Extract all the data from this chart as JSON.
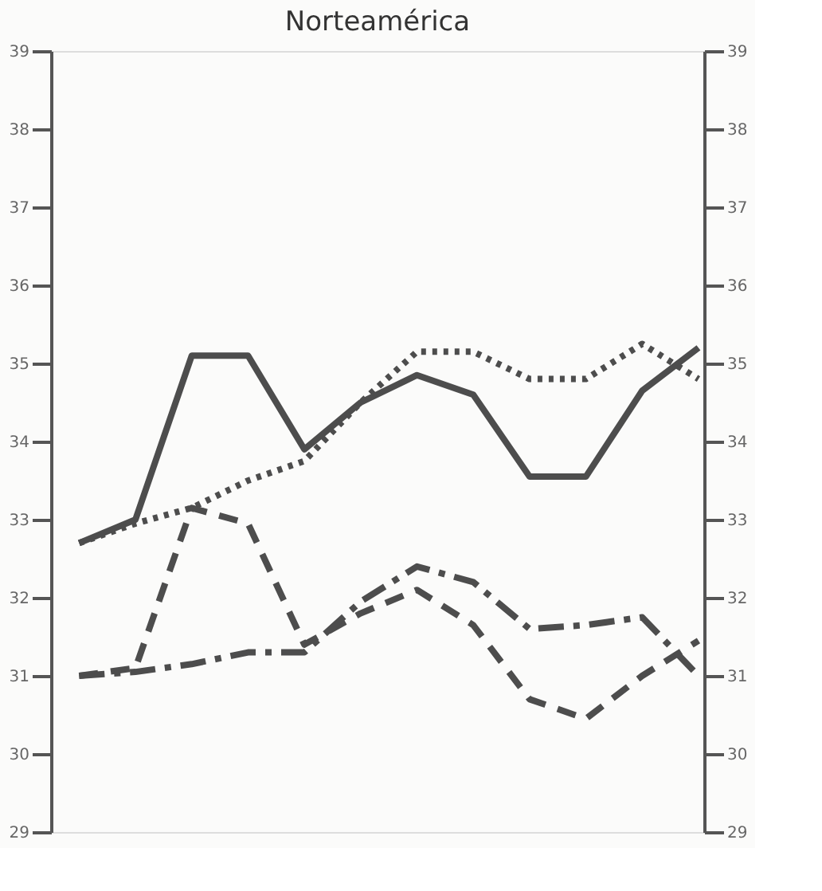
{
  "chart_data": {
    "type": "line",
    "title": "Norteamérica",
    "categories": [
      null,
      null,
      null,
      null,
      null,
      null,
      null,
      null,
      null,
      null,
      null,
      null
    ],
    "series": [
      {
        "color": "#4d4d4d",
        "line_style": "solid",
        "values": [
          32.7,
          33.0,
          35.1,
          35.1,
          33.9,
          34.5,
          34.85,
          34.6,
          33.55,
          33.55,
          34.65,
          35.2
        ]
      },
      {
        "color": "#4d4d4d",
        "line_style": "dotted",
        "values": [
          32.7,
          32.95,
          33.15,
          33.5,
          33.75,
          34.5,
          35.15,
          35.15,
          34.8,
          34.8,
          35.25,
          34.8
        ]
      },
      {
        "color": "#4d4d4d",
        "line_style": "dashed",
        "values": [
          31.0,
          31.1,
          33.15,
          32.95,
          31.4,
          31.8,
          32.1,
          31.65,
          30.7,
          30.45,
          31.0,
          31.45
        ]
      },
      {
        "color": "#4d4d4d",
        "line_style": "dashdot",
        "values": [
          31.0,
          31.05,
          31.15,
          31.3,
          31.3,
          31.95,
          32.4,
          32.2,
          31.6,
          31.65,
          31.75,
          31.0
        ]
      }
    ],
    "ylim": [
      29,
      39
    ],
    "yticks": [
      29,
      30,
      31,
      32,
      33,
      34,
      35,
      36,
      37,
      38,
      39
    ],
    "y2lim": [
      29,
      39
    ],
    "y2ticks": [
      29,
      30,
      31,
      32,
      33,
      34,
      35,
      36,
      37,
      38,
      39
    ],
    "tick_labels": "y",
    "grid": false,
    "marker": "none"
  }
}
